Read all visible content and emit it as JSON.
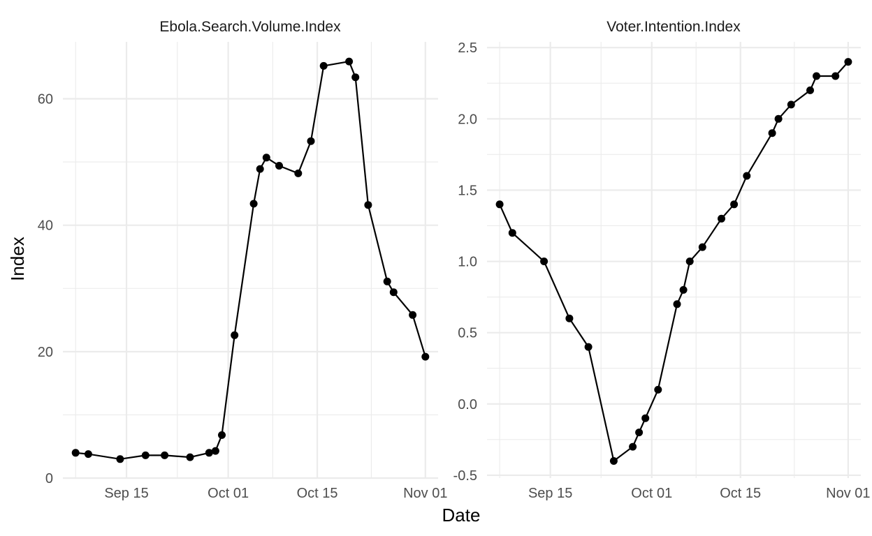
{
  "chart_data": {
    "type": "line",
    "ylabel": "Index",
    "xlabel": "Date",
    "x_ticks": [
      "Sep 15",
      "Oct 01",
      "Oct 15",
      "Nov 01"
    ],
    "panels": [
      {
        "title": "Ebola.Search.Volume.Index",
        "ylim": [
          0,
          69
        ],
        "y_ticks": [
          "0",
          "20",
          "40",
          "60"
        ],
        "series": [
          {
            "x": [
              "2014-09-07",
              "2014-09-09",
              "2014-09-14",
              "2014-09-18",
              "2014-09-21",
              "2014-09-25",
              "2014-09-28",
              "2014-09-29",
              "2014-09-30",
              "2014-10-02",
              "2014-10-05",
              "2014-10-06",
              "2014-10-07",
              "2014-10-09",
              "2014-10-12",
              "2014-10-14",
              "2014-10-16",
              "2014-10-20",
              "2014-10-21",
              "2014-10-23",
              "2014-10-26",
              "2014-10-27",
              "2014-10-30",
              "2014-11-01"
            ],
            "y": [
              4.0,
              3.8,
              3.0,
              3.6,
              3.6,
              3.3,
              4.0,
              4.3,
              6.8,
              22.6,
              43.4,
              48.9,
              50.7,
              49.4,
              48.2,
              53.3,
              65.2,
              65.9,
              63.4,
              43.2,
              31.1,
              29.4,
              25.8,
              19.2
            ]
          }
        ]
      },
      {
        "title": "Voter.Intention.Index",
        "ylim": [
          -0.52,
          2.54
        ],
        "y_ticks": [
          "-0.5",
          "0.0",
          "0.5",
          "1.0",
          "1.5",
          "2.0",
          "2.5"
        ],
        "series": [
          {
            "x": [
              "2014-09-07",
              "2014-09-09",
              "2014-09-14",
              "2014-09-18",
              "2014-09-21",
              "2014-09-25",
              "2014-09-28",
              "2014-09-29",
              "2014-09-30",
              "2014-10-02",
              "2014-10-05",
              "2014-10-06",
              "2014-10-07",
              "2014-10-09",
              "2014-10-12",
              "2014-10-14",
              "2014-10-16",
              "2014-10-20",
              "2014-10-21",
              "2014-10-23",
              "2014-10-26",
              "2014-10-27",
              "2014-10-30",
              "2014-11-01"
            ],
            "y": [
              1.4,
              1.2,
              1.0,
              0.6,
              0.4,
              -0.4,
              -0.3,
              -0.2,
              -0.1,
              0.1,
              0.7,
              0.8,
              1.0,
              1.1,
              1.3,
              1.4,
              1.6,
              1.9,
              2.0,
              2.1,
              2.2,
              2.3,
              2.3,
              2.4
            ]
          }
        ]
      }
    ]
  }
}
